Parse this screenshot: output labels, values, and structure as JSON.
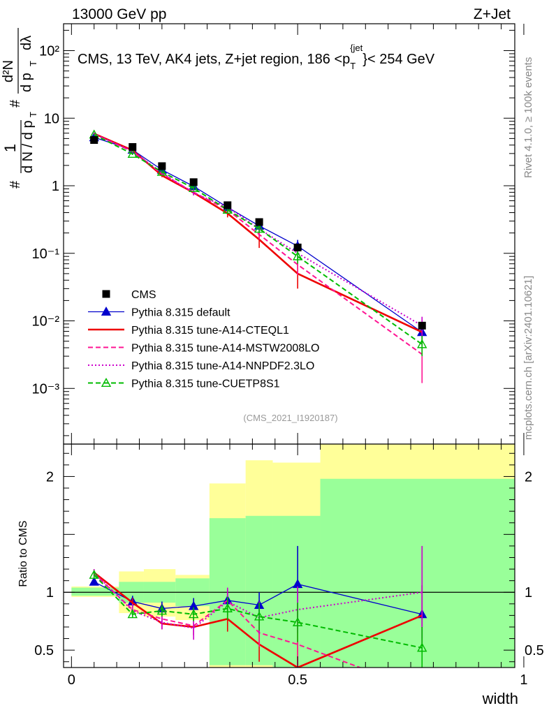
{
  "header": {
    "left": "13000 GeV pp",
    "right": "Z+Jet",
    "rivet": "Rivet 4.1.0, ≥ 100k events",
    "mcplots": "mcplots.cern.ch [arXiv:2401.10621]",
    "analysis": "(CMS_2021_I1920187)"
  },
  "chart_data": [
    {
      "type": "line",
      "panel": "main",
      "title": "CMS, 13 TeV, AK4 jets, Z+jet region, 186 <p_T^{jet}< 254 GeV",
      "title_parts": {
        "pre": "CMS, 13 TeV, AK4 jets, Z+jet region, 186 <p",
        "sub": "T",
        "sup": "{jet",
        "post": "}< 254 GeV"
      },
      "xlabel": "width",
      "ylabel": "1/dN/dp_T d²N/dp_T dλ",
      "ylabel_parts": {
        "one": "1",
        "dN": "d N / d p",
        "d2N": "d²N",
        "dpdl": "d p",
        "T": "T",
        "dl": "dλ",
        "hash": "#"
      },
      "yscale": "log",
      "xlim": [
        -0.0175,
        0.98
      ],
      "ylim": [
        0.00015,
        250
      ],
      "legend_position": "middle-left",
      "yticks": [
        {
          "value": 100,
          "label": "10²"
        },
        {
          "value": 10,
          "label": "10"
        },
        {
          "value": 1,
          "label": "1"
        },
        {
          "value": 0.1,
          "label": "10⁻¹"
        },
        {
          "value": 0.01,
          "label": "10⁻²"
        },
        {
          "value": 0.001,
          "label": "10⁻³"
        }
      ],
      "x": [
        0.05,
        0.135,
        0.2,
        0.27,
        0.345,
        0.415,
        0.5,
        0.775
      ],
      "bin_edges": [
        0,
        0.105,
        0.16,
        0.23,
        0.305,
        0.385,
        0.445,
        0.55,
        1.0
      ],
      "series": [
        {
          "name": "CMS",
          "style": "square",
          "color": "#000000",
          "values": [
            4.75,
            3.75,
            1.95,
            1.13,
            0.515,
            0.29,
            0.122,
            0.0085
          ]
        },
        {
          "name": "Pythia 8.315 default",
          "style": "solid-triangle",
          "color": "#0000cc",
          "values": [
            5.2,
            3.4,
            1.72,
            0.98,
            0.48,
            0.255,
            0.128,
            0.0068
          ],
          "errors": [
            0.1,
            0.1,
            0.08,
            0.06,
            0.03,
            0.02,
            0.03,
            0.0025
          ]
        },
        {
          "name": "Pythia 8.315 tune-A14-CTEQL1",
          "style": "solid",
          "color": "#ee0000",
          "values": [
            5.9,
            3.35,
            1.42,
            0.79,
            0.39,
            0.16,
            0.05,
            0.0068
          ],
          "errors": [
            0.1,
            0.1,
            0.08,
            0.06,
            0.05,
            0.04,
            0.02,
            0.0025
          ]
        },
        {
          "name": "Pythia 8.315 tune-A14-MSTW2008LO",
          "style": "dashed",
          "color": "#ff1493",
          "values": [
            5.8,
            3.2,
            1.5,
            0.8,
            0.44,
            0.19,
            0.068,
            0.0032
          ],
          "errors": [
            0.1,
            0.1,
            0.08,
            0.06,
            0.04,
            0.03,
            0.02,
            0.002
          ]
        },
        {
          "name": "Pythia 8.315 tune-A14-NNPDF2.3LO",
          "style": "dotted",
          "color": "#cc00cc",
          "values": [
            5.85,
            3.25,
            1.55,
            0.78,
            0.48,
            0.23,
            0.1,
            0.0085
          ],
          "errors": [
            0.1,
            0.1,
            0.08,
            0.06,
            0.04,
            0.03,
            0.02,
            0.003
          ]
        },
        {
          "name": "Pythia 8.315 tune-CUETP8S1",
          "style": "dashed-open-triangle",
          "color": "#00bb00",
          "values": [
            5.7,
            2.95,
            1.6,
            0.92,
            0.44,
            0.23,
            0.09,
            0.0045
          ],
          "errors": [
            0.1,
            0.1,
            0.08,
            0.06,
            0.04,
            0.03,
            0.02,
            0.0015
          ]
        }
      ]
    },
    {
      "type": "line",
      "panel": "ratio",
      "ylabel": "Ratio to CMS",
      "xlabel": "width",
      "ylim": [
        0.35,
        2.28
      ],
      "xlim": [
        -0.0175,
        0.98
      ],
      "xticks": [
        {
          "value": 0,
          "label": "0"
        },
        {
          "value": 0.5,
          "label": "0.5"
        },
        {
          "value": 1,
          "label": "1"
        }
      ],
      "yticks": [
        {
          "value": 0.5,
          "label": "0.5"
        },
        {
          "value": 1,
          "label": "1"
        },
        {
          "value": 2,
          "label": "2"
        }
      ],
      "x": [
        0.05,
        0.135,
        0.2,
        0.27,
        0.345,
        0.415,
        0.5,
        0.775
      ],
      "bin_edges": [
        0,
        0.105,
        0.16,
        0.23,
        0.305,
        0.385,
        0.445,
        0.55,
        1.0
      ],
      "band_stat_lo": [
        0.97,
        0.91,
        0.91,
        0.88,
        0.37,
        0.37,
        0.33,
        0.33
      ],
      "band_stat_hi": [
        1.04,
        1.09,
        1.09,
        1.12,
        1.64,
        1.66,
        1.66,
        1.98
      ],
      "band_total_lo": [
        0.96,
        0.82,
        0.79,
        0.76,
        0.33,
        0.33,
        0.33,
        0.33
      ],
      "band_total_hi": [
        1.05,
        1.18,
        1.2,
        1.15,
        1.94,
        2.14,
        2.12,
        2.28
      ],
      "series": [
        {
          "name": "Pythia 8.315 default",
          "color": "#0000cc",
          "values": [
            1.09,
            0.92,
            0.86,
            0.88,
            0.93,
            0.89,
            1.07,
            0.81
          ],
          "errors": [
            0.03,
            0.05,
            0.06,
            0.07,
            0.09,
            0.11,
            0.33,
            0.25
          ]
        },
        {
          "name": "Pythia 8.315 tune-A14-CTEQL1",
          "color": "#ee0000",
          "values": [
            1.17,
            0.91,
            0.73,
            0.7,
            0.77,
            0.55,
            0.35,
            0.8
          ],
          "errors": [
            0.03,
            0.04,
            0.05,
            0.07,
            0.11,
            0.15,
            0.55,
            0.26
          ]
        },
        {
          "name": "Pythia 8.315 tune-A14-MSTW2008LO",
          "color": "#ff1493",
          "values": [
            1.16,
            0.85,
            0.77,
            0.71,
            0.93,
            0.65,
            0.55,
            0.15
          ],
          "errors": [
            0.03,
            0.05,
            0.06,
            0.08,
            0.1,
            0.12,
            0.35,
            0.2
          ]
        },
        {
          "name": "Pythia 8.315 tune-A14-NNPDF2.3LO",
          "color": "#cc00cc",
          "values": [
            1.17,
            0.84,
            0.74,
            0.69,
            0.92,
            0.78,
            0.85,
            1.0
          ],
          "errors": [
            0.03,
            0.05,
            0.06,
            0.1,
            0.12,
            0.14,
            0.2,
            0.4
          ]
        },
        {
          "name": "Pythia 8.315 tune-CUETP8S1",
          "color": "#00bb00",
          "values": [
            1.15,
            0.81,
            0.84,
            0.81,
            0.86,
            0.79,
            0.74,
            0.52
          ],
          "errors": [
            0.03,
            0.03,
            0.05,
            0.06,
            0.1,
            0.12,
            0.17,
            0.18
          ]
        }
      ]
    }
  ]
}
